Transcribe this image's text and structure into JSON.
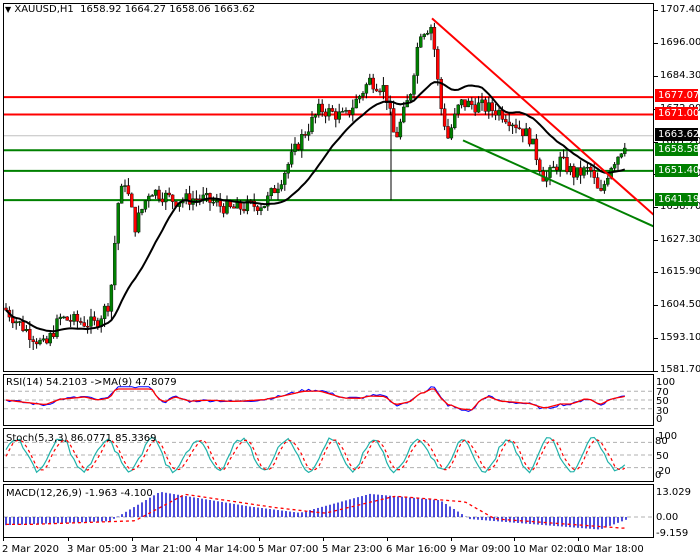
{
  "header": {
    "symbol_timeframe": "XAUUSD,H1",
    "ohlc": "1658.92 1664.27 1658.06 1663.62"
  },
  "price_axis": {
    "ticks": [
      "1707.40",
      "1696.00",
      "1684.30",
      "1672.90",
      "1661.20",
      "1650.10",
      "1638.70",
      "1627.30",
      "1615.90",
      "1604.50",
      "1593.10",
      "1581.70"
    ]
  },
  "price_tags": {
    "current": {
      "label": "1663.62",
      "color": "#000000"
    },
    "r1": {
      "label": "1677.07",
      "color": "#ff0000"
    },
    "r2": {
      "label": "1671.00",
      "color": "#ff0000"
    },
    "s1": {
      "label": "1658.58",
      "color": "#008000"
    },
    "s2": {
      "label": "1651.40",
      "color": "#008000"
    },
    "s3": {
      "label": "1641.19",
      "color": "#008000"
    }
  },
  "rsi": {
    "legend": "RSI(14) 54.2103  ->MA(9) 47.8079",
    "ticks": [
      "100",
      "70",
      "50",
      "30",
      "0"
    ]
  },
  "stoch": {
    "legend": "Stoch(5,3,3) 86.0771 85.3369",
    "ticks": [
      "100",
      "80",
      "50",
      "20",
      "0"
    ]
  },
  "macd": {
    "legend": "MACD(12,26,9) -1.963 -4.100",
    "ticks": [
      "13.029",
      "0.00",
      "-9.159"
    ]
  },
  "time_axis": {
    "labels": [
      "2 Mar 2020",
      "3 Mar 05:00",
      "3 Mar 21:00",
      "4 Mar 14:00",
      "5 Mar 07:00",
      "5 Mar 23:00",
      "6 Mar 16:00",
      "9 Mar 09:00",
      "10 Mar 02:00",
      "10 Mar 18:00"
    ]
  },
  "colors": {
    "bull": "#008000",
    "bear": "#ff0000",
    "ma": "#000000",
    "resistance": "#ff0000",
    "support": "#008000",
    "rsi_line": "#0000ff",
    "rsi_ma": "#ff0000",
    "stoch_main": "#20b2aa",
    "stoch_signal": "#ff0000",
    "macd_hist": "#0000cc",
    "macd_signal": "#ff0000"
  },
  "chart_data": {
    "type": "candlestick",
    "title": "XAUUSD,H1 1658.92 1664.27 1658.06 1663.62",
    "xlabel": "",
    "ylabel": "",
    "ylim": [
      1581.7,
      1707.4
    ],
    "categories": [
      "2 Mar 2020",
      "3 Mar 05:00",
      "3 Mar 21:00",
      "4 Mar 14:00",
      "5 Mar 07:00",
      "5 Mar 23:00",
      "6 Mar 16:00",
      "9 Mar 09:00",
      "10 Mar 02:00",
      "10 Mar 18:00"
    ],
    "last_bar": {
      "open": 1658.92,
      "high": 1664.27,
      "low": 1658.06,
      "close": 1663.62
    },
    "horizontal_levels": [
      {
        "price": 1677.07,
        "type": "resistance"
      },
      {
        "price": 1671.0,
        "type": "resistance"
      },
      {
        "price": 1658.58,
        "type": "support"
      },
      {
        "price": 1651.4,
        "type": "support"
      },
      {
        "price": 1641.19,
        "type": "support"
      }
    ],
    "trendlines": [
      {
        "name": "descending resistance",
        "color": "red",
        "from": {
          "time": "6 Mar 16:00",
          "price": 1704.5
        },
        "to": {
          "time": "end",
          "price": 1636.0
        }
      },
      {
        "name": "descending support",
        "color": "green",
        "from": {
          "time": "9 Mar 09:00",
          "price": 1662.0
        },
        "to": {
          "time": "end",
          "price": 1632.0
        }
      }
    ],
    "approx_close_path": [
      {
        "t": "2 Mar 2020",
        "price": 1604
      },
      {
        "t": "3 Mar 05:00",
        "price": 1600
      },
      {
        "t": "3 Mar 21:00",
        "price": 1642
      },
      {
        "t": "4 Mar 14:00",
        "price": 1640
      },
      {
        "t": "5 Mar 07:00",
        "price": 1658
      },
      {
        "t": "5 Mar 23:00",
        "price": 1683
      },
      {
        "t": "6 Mar 16:00",
        "price": 1700
      },
      {
        "t": "9 Mar 09:00",
        "price": 1673
      },
      {
        "t": "10 Mar 02:00",
        "price": 1660
      },
      {
        "t": "10 Mar 18:00",
        "price": 1650
      },
      {
        "t": "last",
        "price": 1663.62
      }
    ],
    "indicators": {
      "RSI(14)": {
        "value": 54.2103,
        "ma9": 47.8079,
        "levels": [
          30,
          50,
          70
        ],
        "range": [
          0,
          100
        ]
      },
      "Stoch(5,3,3)": {
        "main": 86.0771,
        "signal": 85.3369,
        "levels": [
          20,
          50,
          80
        ],
        "range": [
          0,
          100
        ]
      },
      "MACD(12,26,9)": {
        "macd": -1.963,
        "signal": -4.1,
        "range": [
          -9.159,
          13.029
        ]
      }
    },
    "legend_position": "top-left",
    "grid": false
  }
}
